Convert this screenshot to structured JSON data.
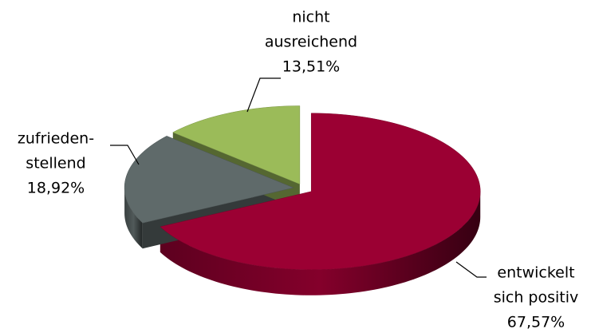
{
  "chart_data": {
    "type": "pie3d",
    "categories": [
      [
        "entwickelt",
        "sich positiv"
      ],
      [
        "zufrieden-",
        "stellend"
      ],
      [
        "nicht",
        "ausreichend"
      ]
    ],
    "values": [
      67.57,
      18.92,
      13.51
    ],
    "value_labels": [
      "67,57%",
      "18,92%",
      "13,51%"
    ],
    "colors": [
      "#9b0033",
      "#5f6a6a",
      "#9bbb59"
    ]
  }
}
